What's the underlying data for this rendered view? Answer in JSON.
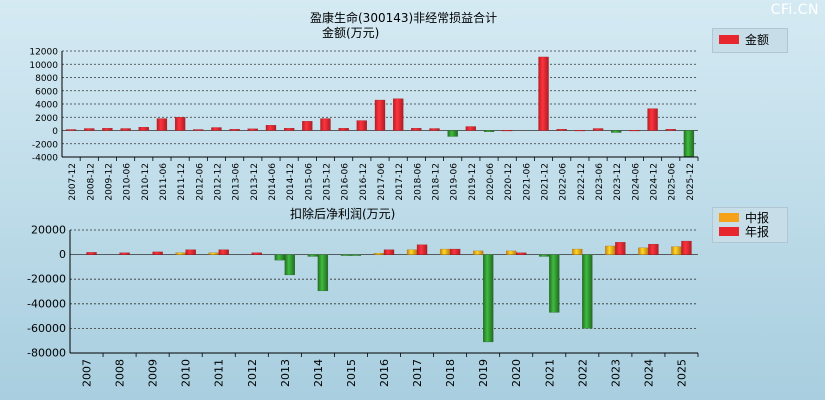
{
  "watermark": "CFi.CN",
  "chart_data": [
    {
      "type": "bar",
      "title": "盈康生命(300143)非经常损益合计",
      "subtitle": "金额(万元)",
      "legend": [
        "金额"
      ],
      "legend_position": "top-right",
      "grid": true,
      "ylim": [
        -4000,
        12000
      ],
      "yticks": [
        12000,
        10000,
        8000,
        6000,
        4000,
        2000,
        0,
        -2000,
        -4000
      ],
      "categories": [
        "2007-12",
        "2008-12",
        "2009-12",
        "2010-06",
        "2010-12",
        "2011-06",
        "2011-12",
        "2012-06",
        "2012-12",
        "2013-06",
        "2013-12",
        "2014-06",
        "2014-12",
        "2015-06",
        "2015-12",
        "2016-06",
        "2016-12",
        "2017-06",
        "2017-12",
        "2018-06",
        "2018-12",
        "2019-06",
        "2019-12",
        "2020-06",
        "2020-12",
        "2021-06",
        "2021-12",
        "2022-06",
        "2022-12",
        "2023-06",
        "2023-12",
        "2024-06",
        "2024-12",
        "2025-06",
        "2025-12"
      ],
      "series": [
        {
          "name": "金额",
          "color_pos": "#e8262e",
          "color_neg": "#2e8b2e",
          "values": [
            150,
            300,
            350,
            300,
            500,
            1800,
            2000,
            150,
            450,
            200,
            250,
            800,
            350,
            1400,
            1800,
            350,
            1500,
            4600,
            4800,
            350,
            300,
            -900,
            600,
            -200,
            50,
            0,
            11100,
            200,
            50,
            300,
            -300,
            50,
            3300,
            200,
            -3900
          ]
        }
      ]
    },
    {
      "type": "bar",
      "title": "扣除后净利润(万元)",
      "legend": [
        "中报",
        "年报"
      ],
      "legend_position": "top-right",
      "grid": true,
      "ylim": [
        -80000,
        20000
      ],
      "yticks": [
        20000,
        0,
        -20000,
        -40000,
        -60000,
        -80000
      ],
      "categories": [
        "2007",
        "2008",
        "2009",
        "2010",
        "2011",
        "2012",
        "2013",
        "2014",
        "2015",
        "2016",
        "2017",
        "2018",
        "2019",
        "2020",
        "2021",
        "2022",
        "2023",
        "2024",
        "2025"
      ],
      "series": [
        {
          "name": "中报",
          "color_pos": "#f6a11a",
          "color_neg": "#2e8b2e",
          "values": [
            0,
            0,
            0,
            1500,
            1500,
            0,
            -4500,
            -1500,
            -800,
            1200,
            4000,
            4500,
            3000,
            3000,
            -1500,
            4500,
            7000,
            5500,
            6500
          ]
        },
        {
          "name": "年报",
          "color_pos": "#e8262e",
          "color_neg": "#2e8b2e",
          "values": [
            1800,
            1500,
            2200,
            4000,
            4000,
            1500,
            -16500,
            -29500,
            -800,
            4000,
            8000,
            4500,
            -71000,
            1500,
            -47000,
            -60000,
            10000,
            8500,
            11000
          ]
        }
      ]
    }
  ]
}
